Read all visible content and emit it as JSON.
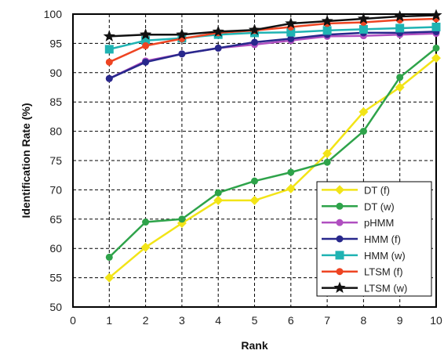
{
  "chart_data": {
    "type": "line",
    "title": "",
    "xlabel": "Rank",
    "ylabel": "Identification Rate (%)",
    "xlim": [
      0,
      10
    ],
    "ylim": [
      50,
      100
    ],
    "x_ticks": [
      "0",
      "1",
      "2",
      "3",
      "4",
      "5",
      "6",
      "7",
      "8",
      "9",
      "10"
    ],
    "y_ticks": [
      "50",
      "55",
      "60",
      "65",
      "70",
      "75",
      "80",
      "85",
      "90",
      "95",
      "100"
    ],
    "grid": true,
    "legend_position": "bottom-right",
    "x": [
      1,
      2,
      3,
      4,
      5,
      6,
      7,
      8,
      9,
      10
    ],
    "series": [
      {
        "name": "DT (f)",
        "color": "#f2e417",
        "marker": "diamond",
        "values": [
          55.0,
          60.2,
          64.3,
          68.2,
          68.2,
          70.2,
          76.2,
          83.3,
          87.5,
          92.5
        ]
      },
      {
        "name": "DT (w)",
        "color": "#2ea34a",
        "marker": "circle",
        "values": [
          58.5,
          64.5,
          65.0,
          69.5,
          71.5,
          73.0,
          74.7,
          80.0,
          89.2,
          94.2
        ]
      },
      {
        "name": "pHMM",
        "color": "#b04fc0",
        "marker": "circle",
        "values": [
          89.0,
          92.0,
          93.2,
          94.2,
          94.8,
          95.5,
          96.2,
          96.3,
          96.5,
          96.7
        ]
      },
      {
        "name": "HMM (f)",
        "color": "#28288c",
        "marker": "circle",
        "values": [
          89.0,
          91.8,
          93.2,
          94.2,
          95.2,
          95.8,
          96.5,
          96.8,
          96.8,
          97.0
        ]
      },
      {
        "name": "HMM (w)",
        "color": "#1fb3b3",
        "marker": "square",
        "values": [
          94.0,
          95.5,
          95.9,
          96.5,
          96.8,
          96.9,
          97.2,
          97.4,
          97.6,
          97.8
        ]
      },
      {
        "name": "LTSM (f)",
        "color": "#ee4422",
        "marker": "circle",
        "values": [
          91.8,
          94.6,
          95.8,
          96.8,
          97.2,
          97.8,
          98.4,
          98.6,
          99.0,
          99.2
        ]
      },
      {
        "name": "LTSM (w)",
        "color": "#111111",
        "marker": "star",
        "values": [
          96.2,
          96.5,
          96.5,
          97.0,
          97.3,
          98.4,
          98.8,
          99.2,
          99.6,
          99.8
        ]
      }
    ]
  }
}
